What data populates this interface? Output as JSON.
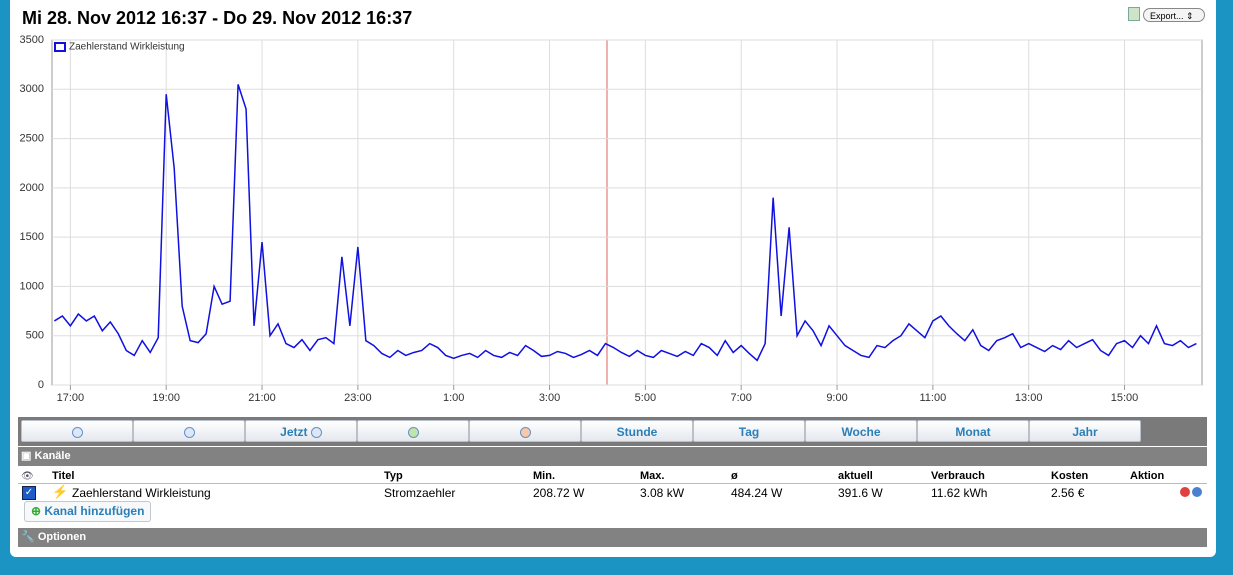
{
  "header": {
    "title": "Mi 28. Nov 2012 16:37 - Do 29. Nov 2012 16:37",
    "export": "Export..."
  },
  "chart_data": {
    "type": "line",
    "xlim": [
      "16:37",
      "16:37"
    ],
    "ylim": [
      0,
      3500
    ],
    "yticks": [
      0,
      500,
      1000,
      1500,
      2000,
      2500,
      3000,
      3500
    ],
    "xticks": [
      "17:00",
      "19:00",
      "21:00",
      "23:00",
      "1:00",
      "3:00",
      "5:00",
      "7:00",
      "9:00",
      "11:00",
      "13:00",
      "15:00"
    ],
    "grid": true,
    "legend": "upper left",
    "x": [
      "16:40",
      "16:50",
      "17:00",
      "17:10",
      "17:20",
      "17:30",
      "17:40",
      "17:50",
      "18:00",
      "18:10",
      "18:20",
      "18:30",
      "18:40",
      "18:50",
      "19:00",
      "19:10",
      "19:20",
      "19:30",
      "19:40",
      "19:50",
      "20:00",
      "20:10",
      "20:20",
      "20:30",
      "20:40",
      "20:50",
      "21:00",
      "21:10",
      "21:20",
      "21:30",
      "21:40",
      "21:50",
      "22:00",
      "22:10",
      "22:20",
      "22:30",
      "22:40",
      "22:50",
      "23:00",
      "23:10",
      "23:20",
      "23:30",
      "23:40",
      "23:50",
      "0:00",
      "0:10",
      "0:20",
      "0:30",
      "0:40",
      "0:50",
      "1:00",
      "1:10",
      "1:20",
      "1:30",
      "1:40",
      "1:50",
      "2:00",
      "2:10",
      "2:20",
      "2:30",
      "2:40",
      "2:50",
      "3:00",
      "3:10",
      "3:20",
      "3:30",
      "3:40",
      "3:50",
      "4:00",
      "4:10",
      "4:20",
      "4:30",
      "4:40",
      "4:50",
      "5:00",
      "5:10",
      "5:20",
      "5:30",
      "5:40",
      "5:50",
      "6:00",
      "6:10",
      "6:20",
      "6:30",
      "6:40",
      "6:50",
      "7:00",
      "7:10",
      "7:20",
      "7:30",
      "7:40",
      "7:50",
      "8:00",
      "8:10",
      "8:20",
      "8:30",
      "8:40",
      "8:50",
      "9:00",
      "9:10",
      "9:20",
      "9:30",
      "9:40",
      "9:50",
      "10:00",
      "10:10",
      "10:20",
      "10:30",
      "10:40",
      "10:50",
      "11:00",
      "11:10",
      "11:20",
      "11:30",
      "11:40",
      "11:50",
      "12:00",
      "12:10",
      "12:20",
      "12:30",
      "12:40",
      "12:50",
      "13:00",
      "13:10",
      "13:20",
      "13:30",
      "13:40",
      "13:50",
      "14:00",
      "14:10",
      "14:20",
      "14:30",
      "14:40",
      "14:50",
      "15:00",
      "15:10",
      "15:20",
      "15:30",
      "15:40",
      "15:50",
      "16:00",
      "16:10",
      "16:20",
      "16:30"
    ],
    "series": [
      {
        "name": "Zaehlerstand Wirkleistung",
        "color": "#1010e0",
        "values": [
          650,
          700,
          600,
          720,
          650,
          700,
          550,
          640,
          520,
          350,
          300,
          450,
          330,
          480,
          2950,
          2200,
          800,
          450,
          430,
          520,
          1000,
          820,
          850,
          3050,
          2800,
          600,
          1450,
          500,
          620,
          420,
          380,
          460,
          350,
          460,
          480,
          420,
          1300,
          600,
          1400,
          450,
          400,
          320,
          280,
          350,
          300,
          330,
          350,
          420,
          380,
          300,
          270,
          300,
          320,
          280,
          350,
          300,
          280,
          330,
          300,
          400,
          350,
          290,
          300,
          340,
          320,
          280,
          310,
          350,
          300,
          420,
          380,
          330,
          290,
          350,
          300,
          280,
          350,
          320,
          290,
          340,
          300,
          420,
          380,
          300,
          450,
          330,
          400,
          320,
          250,
          420,
          1900,
          700,
          1600,
          500,
          650,
          550,
          400,
          600,
          500,
          400,
          350,
          300,
          280,
          400,
          380,
          450,
          500,
          620,
          550,
          480,
          650,
          700,
          600,
          520,
          450,
          560,
          400,
          350,
          450,
          480,
          520,
          380,
          420,
          380,
          340,
          400,
          360,
          450,
          380,
          420,
          460,
          350,
          300,
          420,
          450,
          380,
          500,
          420,
          600,
          420,
          400,
          450,
          380,
          420
        ]
      }
    ]
  },
  "toolbar": {
    "now": "Jetzt",
    "ranges": [
      "Stunde",
      "Tag",
      "Woche",
      "Monat",
      "Jahr"
    ]
  },
  "channels": {
    "title": "Kanäle",
    "columns": [
      "Titel",
      "Typ",
      "Min.",
      "Max.",
      "ø",
      "aktuell",
      "Verbrauch",
      "Kosten",
      "Aktion"
    ],
    "rows": [
      [
        "Zaehlerstand Wirkleistung",
        "Stromzaehler",
        "208.72 W",
        "3.08 kW",
        "484.24 W",
        "391.6 W",
        "11.62 kWh",
        "2.56 €"
      ]
    ],
    "add": "Kanal hinzufügen"
  },
  "options": {
    "title": "Optionen"
  }
}
